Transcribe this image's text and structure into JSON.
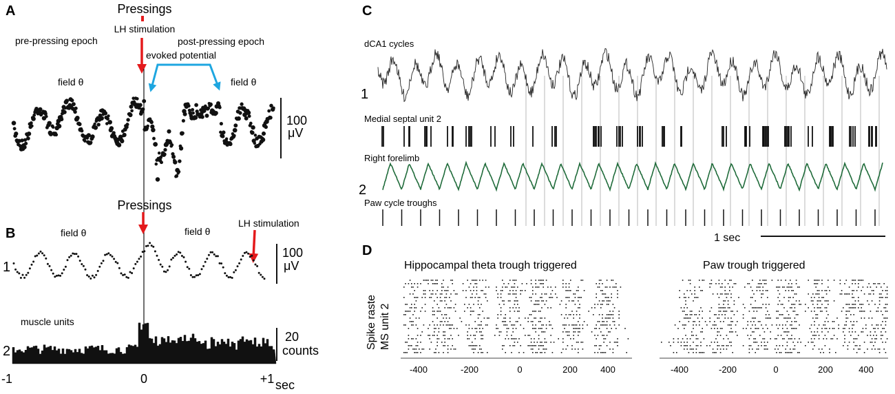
{
  "panel_labels": {
    "a": "A",
    "b": "B",
    "c": "C",
    "d": "D"
  },
  "panel_a": {
    "pressings": "Pressings",
    "lh_stimulation": "LH stimulation",
    "pre_epoch": "pre-pressing epoch",
    "post_epoch": "post-pressing epoch",
    "evoked_potential": "evoked  potential",
    "field_theta_left": "field θ",
    "field_theta_right": "field θ",
    "scale_value": "100",
    "scale_unit": "μV"
  },
  "panel_b": {
    "pressings": "Pressings",
    "field_theta_left": "field θ",
    "field_theta_right": "field θ",
    "lh_stimulation": "LH stimulation",
    "trace1_label": "1",
    "trace2_label": "2",
    "scale1_value": "100",
    "scale1_unit": "μV",
    "muscle_units": "muscle units",
    "scale2_value": "20",
    "scale2_unit": "counts",
    "x_ticks": [
      "-1",
      "0",
      "+1"
    ],
    "x_unit": "sec"
  },
  "panel_c": {
    "dca1": "dCA1 cycles",
    "septal": "Medial septal unit 2",
    "forelimb": "Right forelimb",
    "paw_troughs": "Paw cycle troughs",
    "group1": "1",
    "group2": "2",
    "scale": "1 sec"
  },
  "panel_d": {
    "title_left": "Hippocampal theta trough triggered",
    "title_right": "Paw trough triggered",
    "ylabel_line1": "Spike raste",
    "ylabel_line2": "MS unit 2",
    "ticks_left": [
      "-400",
      "-200",
      "0",
      "200",
      "400"
    ],
    "ticks_right": [
      "-400",
      "-200",
      "0",
      "200",
      "400"
    ]
  },
  "colors": {
    "red_arrow": "#e41a1c",
    "blue_bracket": "#1ea6e0",
    "forelimb_trace": "#1f6b3a",
    "ink": "#111111",
    "guide": "#cccccc"
  }
}
